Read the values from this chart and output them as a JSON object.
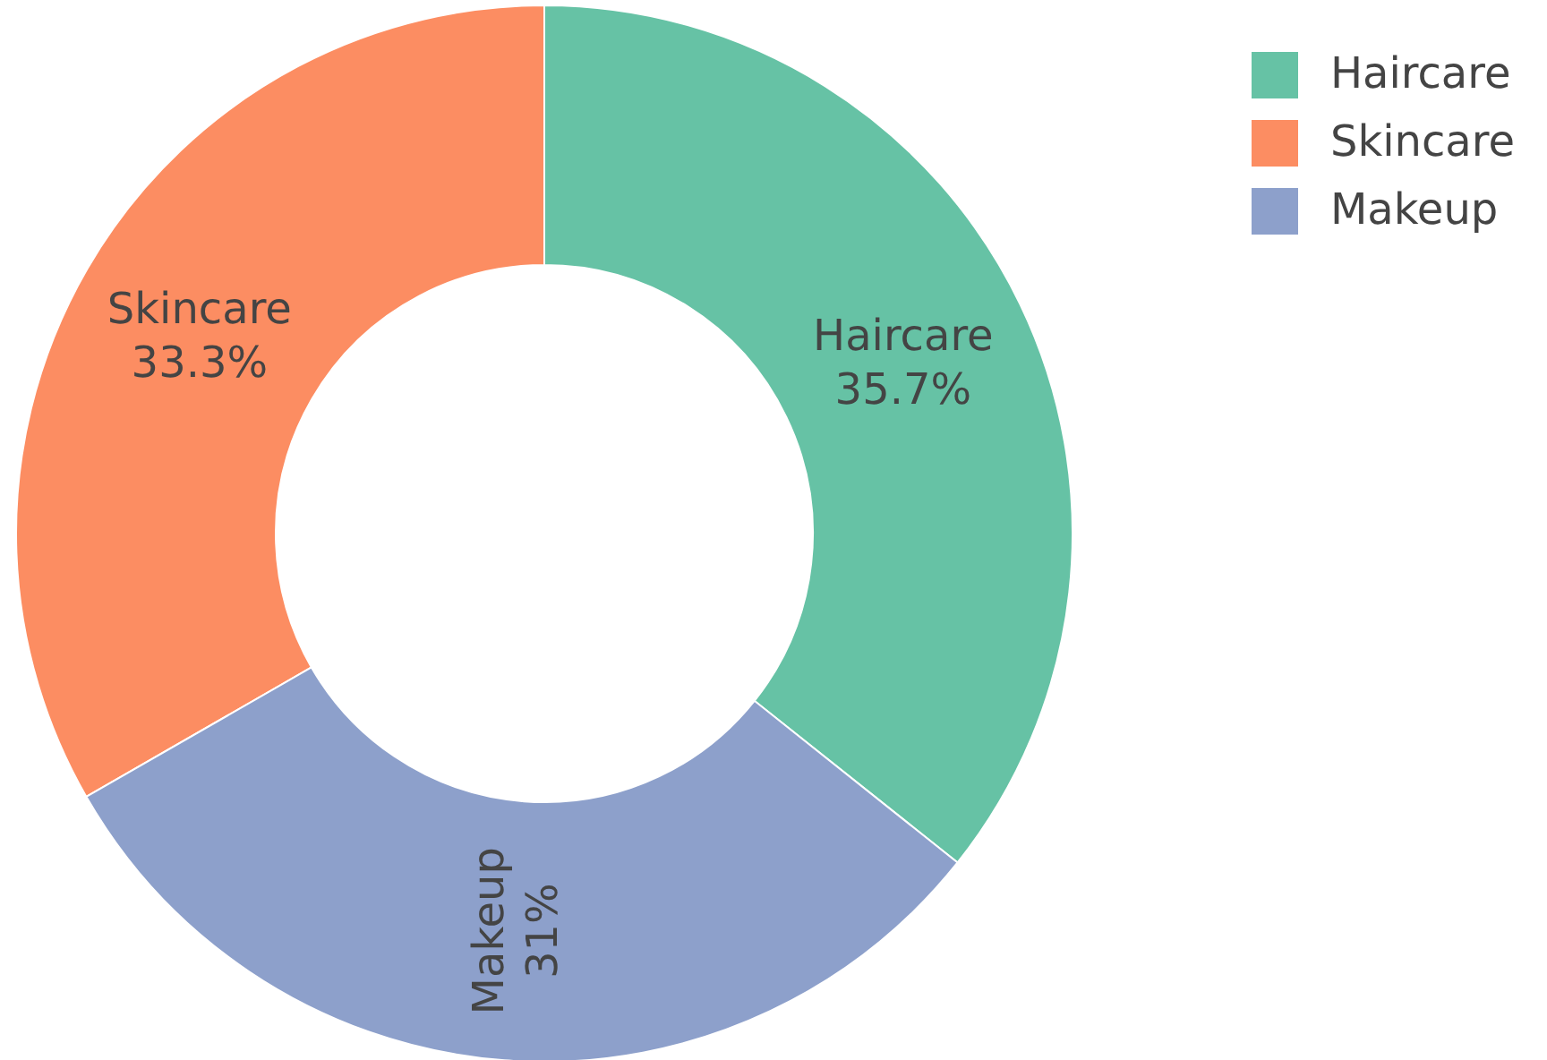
{
  "chart_data": {
    "type": "donut",
    "categories": [
      "Haircare",
      "Skincare",
      "Makeup"
    ],
    "values": [
      35.7,
      33.3,
      31
    ],
    "colors": [
      "#66c2a5",
      "#fc8d62",
      "#8da0cb"
    ],
    "value_labels": [
      "35.7%",
      "33.3%",
      "31%"
    ],
    "legend": "top right"
  }
}
